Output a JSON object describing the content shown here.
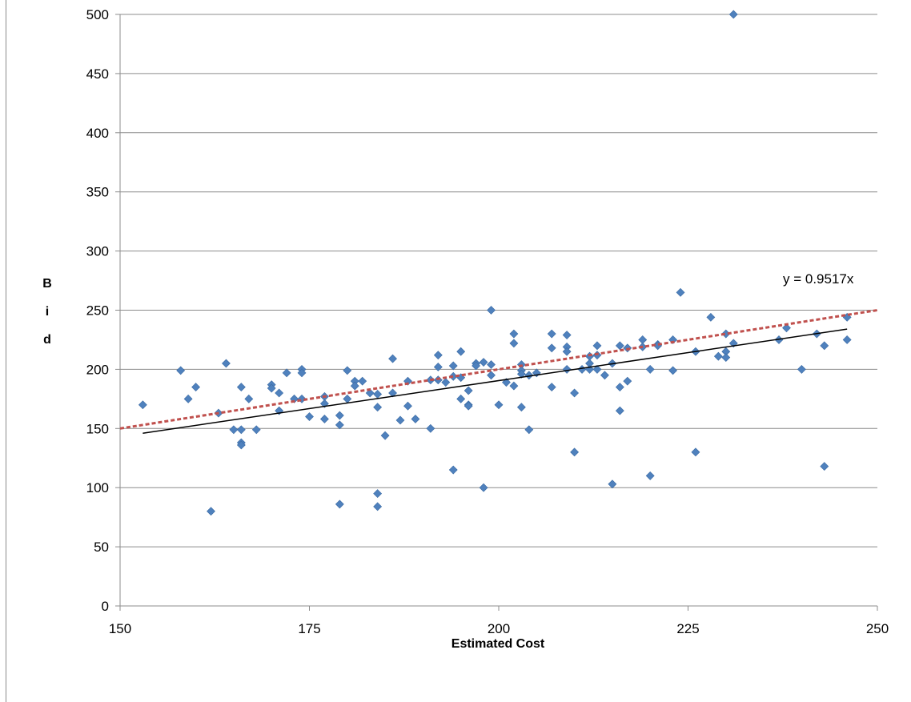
{
  "chart_data": {
    "type": "scatter",
    "title": "",
    "xlabel": "Estimated Cost",
    "ylabel": "Bid",
    "xlim": [
      150,
      250
    ],
    "ylim": [
      0,
      500
    ],
    "x_ticks": [
      150,
      175,
      200,
      225,
      250
    ],
    "y_ticks": [
      0,
      50,
      100,
      150,
      200,
      250,
      300,
      350,
      400,
      450,
      500
    ],
    "grid": "horizontal",
    "marker_color": "#4f81bd",
    "marker_shape": "diamond",
    "equation_label": "y = 0.9517x",
    "reference_line": {
      "slope": 1,
      "color": "#c0504d",
      "style": "dashed",
      "x_range": [
        150,
        250
      ]
    },
    "fit_line": {
      "color": "#000000",
      "style": "solid",
      "points": [
        [
          153,
          146
        ],
        [
          246,
          234
        ]
      ]
    },
    "points": [
      [
        153,
        170
      ],
      [
        158,
        199
      ],
      [
        159,
        175
      ],
      [
        160,
        185
      ],
      [
        162,
        80
      ],
      [
        163,
        163
      ],
      [
        164,
        205
      ],
      [
        165,
        149
      ],
      [
        166,
        185
      ],
      [
        166,
        149
      ],
      [
        166,
        138
      ],
      [
        166,
        136
      ],
      [
        167,
        175
      ],
      [
        168,
        149
      ],
      [
        170,
        187
      ],
      [
        170,
        184
      ],
      [
        171,
        180
      ],
      [
        171,
        165
      ],
      [
        172,
        197
      ],
      [
        173,
        175
      ],
      [
        174,
        200
      ],
      [
        174,
        197
      ],
      [
        174,
        175
      ],
      [
        175,
        160
      ],
      [
        177,
        177
      ],
      [
        177,
        171
      ],
      [
        177,
        158
      ],
      [
        179,
        161
      ],
      [
        179,
        153
      ],
      [
        179,
        86
      ],
      [
        180,
        199
      ],
      [
        180,
        175
      ],
      [
        181,
        190
      ],
      [
        181,
        186
      ],
      [
        182,
        190
      ],
      [
        183,
        180
      ],
      [
        184,
        179
      ],
      [
        184,
        168
      ],
      [
        184,
        95
      ],
      [
        184,
        84
      ],
      [
        185,
        144
      ],
      [
        186,
        209
      ],
      [
        186,
        180
      ],
      [
        187,
        157
      ],
      [
        188,
        190
      ],
      [
        188,
        169
      ],
      [
        189,
        158
      ],
      [
        191,
        191
      ],
      [
        191,
        150
      ],
      [
        192,
        212
      ],
      [
        192,
        202
      ],
      [
        192,
        191
      ],
      [
        193,
        189
      ],
      [
        194,
        203
      ],
      [
        194,
        194
      ],
      [
        194,
        115
      ],
      [
        195,
        215
      ],
      [
        195,
        193
      ],
      [
        195,
        175
      ],
      [
        196,
        182
      ],
      [
        196,
        170
      ],
      [
        196,
        169
      ],
      [
        197,
        205
      ],
      [
        197,
        203
      ],
      [
        198,
        206
      ],
      [
        198,
        100
      ],
      [
        199,
        250
      ],
      [
        199,
        204
      ],
      [
        199,
        195
      ],
      [
        200,
        170
      ],
      [
        201,
        189
      ],
      [
        202,
        230
      ],
      [
        202,
        222
      ],
      [
        202,
        186
      ],
      [
        203,
        204
      ],
      [
        203,
        199
      ],
      [
        203,
        196
      ],
      [
        203,
        168
      ],
      [
        204,
        195
      ],
      [
        204,
        149
      ],
      [
        205,
        197
      ],
      [
        207,
        230
      ],
      [
        207,
        218
      ],
      [
        207,
        185
      ],
      [
        209,
        229
      ],
      [
        209,
        219
      ],
      [
        209,
        215
      ],
      [
        209,
        200
      ],
      [
        210,
        180
      ],
      [
        210,
        130
      ],
      [
        211,
        200
      ],
      [
        212,
        211
      ],
      [
        212,
        205
      ],
      [
        212,
        200
      ],
      [
        213,
        220
      ],
      [
        213,
        212
      ],
      [
        213,
        200
      ],
      [
        214,
        195
      ],
      [
        215,
        205
      ],
      [
        215,
        103
      ],
      [
        216,
        220
      ],
      [
        216,
        185
      ],
      [
        216,
        165
      ],
      [
        217,
        218
      ],
      [
        217,
        190
      ],
      [
        219,
        225
      ],
      [
        219,
        219
      ],
      [
        220,
        200
      ],
      [
        220,
        110
      ],
      [
        221,
        221
      ],
      [
        221,
        220
      ],
      [
        223,
        225
      ],
      [
        223,
        199
      ],
      [
        224,
        265
      ],
      [
        226,
        215
      ],
      [
        226,
        130
      ],
      [
        228,
        244
      ],
      [
        229,
        211
      ],
      [
        230,
        230
      ],
      [
        230,
        215
      ],
      [
        230,
        210
      ],
      [
        231,
        500
      ],
      [
        231,
        222
      ],
      [
        237,
        225
      ],
      [
        238,
        235
      ],
      [
        240,
        200
      ],
      [
        242,
        230
      ],
      [
        243,
        220
      ],
      [
        243,
        118
      ],
      [
        246,
        244
      ],
      [
        246,
        225
      ]
    ]
  }
}
